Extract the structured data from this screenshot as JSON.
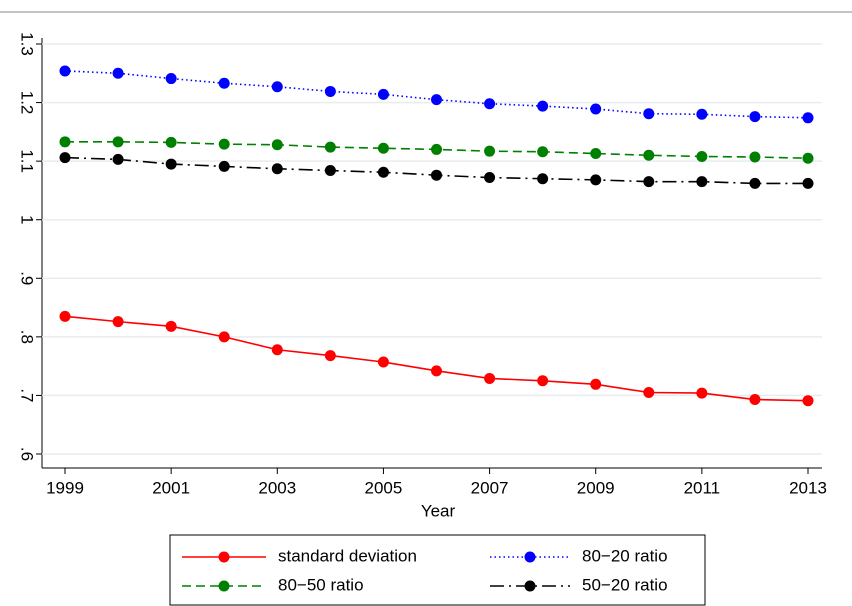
{
  "chart_data": {
    "type": "line",
    "x_label": "Year",
    "x": [
      1999,
      2000,
      2001,
      2002,
      2003,
      2004,
      2005,
      2006,
      2007,
      2008,
      2009,
      2010,
      2011,
      2012,
      2013
    ],
    "xlim": [
      1999,
      2013
    ],
    "xticks": [
      1999,
      2001,
      2003,
      2005,
      2007,
      2009,
      2011,
      2013
    ],
    "ylim": [
      0.6,
      1.3
    ],
    "yticks": [
      {
        "value": 0.6,
        "label": ".6"
      },
      {
        "value": 0.7,
        "label": ".7"
      },
      {
        "value": 0.8,
        "label": ".8"
      },
      {
        "value": 0.9,
        "label": ".9"
      },
      1,
      1.1,
      1.2,
      1.3
    ],
    "grid": true,
    "series": [
      {
        "name": "standard deviation",
        "color": "#ff0000",
        "style": "solid",
        "values": [
          0.835,
          0.826,
          0.818,
          0.8,
          0.778,
          0.768,
          0.757,
          0.742,
          0.729,
          0.725,
          0.719,
          0.705,
          0.704,
          0.693,
          0.691
        ]
      },
      {
        "name": "80−20 ratio",
        "color": "#0000ff",
        "style": "dotted",
        "values": [
          1.254,
          1.25,
          1.241,
          1.233,
          1.227,
          1.219,
          1.214,
          1.205,
          1.198,
          1.194,
          1.189,
          1.181,
          1.18,
          1.176,
          1.174
        ]
      },
      {
        "name": "80−50 ratio",
        "color": "#008000",
        "style": "dashed",
        "values": [
          1.133,
          1.133,
          1.132,
          1.129,
          1.128,
          1.124,
          1.122,
          1.12,
          1.117,
          1.116,
          1.113,
          1.11,
          1.108,
          1.107,
          1.105
        ]
      },
      {
        "name": "50−20 ratio",
        "color": "#000000",
        "style": "dashdot",
        "values": [
          1.106,
          1.103,
          1.095,
          1.091,
          1.087,
          1.084,
          1.081,
          1.076,
          1.072,
          1.07,
          1.068,
          1.065,
          1.065,
          1.062,
          1.062
        ]
      }
    ]
  }
}
